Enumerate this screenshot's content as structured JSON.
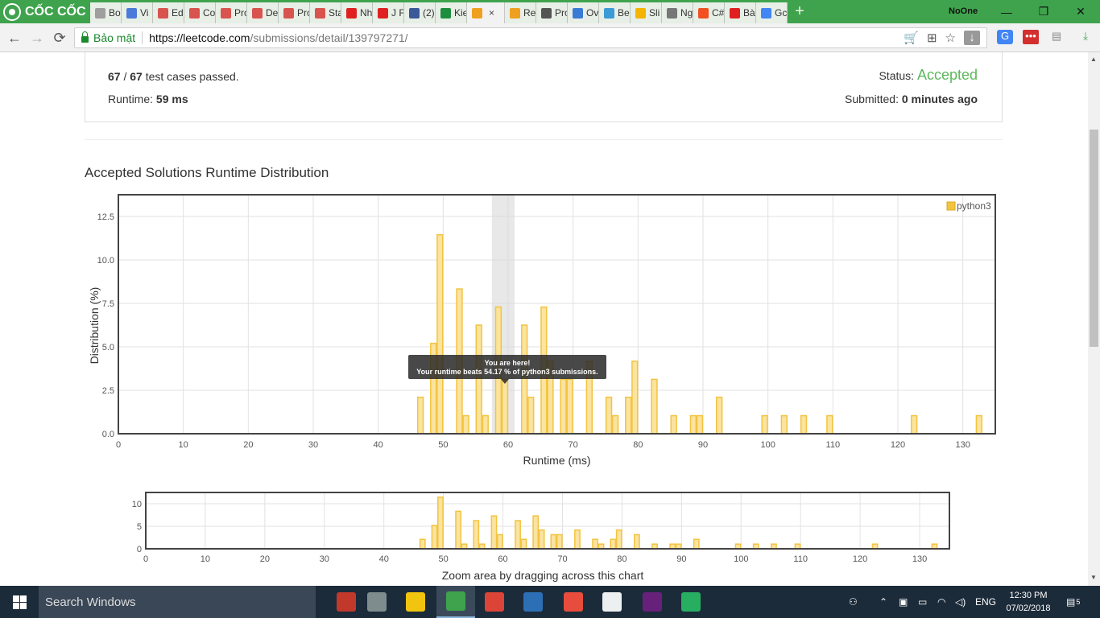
{
  "browser": {
    "brand": "CỐC CỐC",
    "tabs": [
      {
        "label": "Bo",
        "color": "#9e9e9e"
      },
      {
        "label": "Vi",
        "color": "#4a7bd9"
      },
      {
        "label": "Ed",
        "color": "#d9534f"
      },
      {
        "label": "Co",
        "color": "#d9534f"
      },
      {
        "label": "Pro",
        "color": "#d9534f"
      },
      {
        "label": "De",
        "color": "#d9534f"
      },
      {
        "label": "Pro",
        "color": "#d9534f"
      },
      {
        "label": "Sta",
        "color": "#d9534f"
      },
      {
        "label": "Nh",
        "color": "#e02020"
      },
      {
        "label": "J F",
        "color": "#e02020"
      },
      {
        "label": "(2)",
        "color": "#3b5998"
      },
      {
        "label": "Kie",
        "color": "#1e8e3e"
      },
      {
        "label": "",
        "color": "#f0a020",
        "active": true,
        "close": "×"
      },
      {
        "label": "Re",
        "color": "#f0a020"
      },
      {
        "label": "Pro",
        "color": "#555555"
      },
      {
        "label": "Ov",
        "color": "#3a7bd5"
      },
      {
        "label": "Be",
        "color": "#3a9bd5"
      },
      {
        "label": "Sli",
        "color": "#f4b400"
      },
      {
        "label": "Ng",
        "color": "#777777"
      },
      {
        "label": "C#",
        "color": "#f25022"
      },
      {
        "label": "Bà",
        "color": "#e02020"
      },
      {
        "label": "Gc",
        "color": "#4285f4"
      }
    ],
    "new_tab": "+",
    "profile": "NoOne",
    "window": {
      "minimize": "—",
      "maximize": "❐",
      "close": "✕"
    },
    "nav": {
      "back": "←",
      "forward": "→",
      "reload": "⟳"
    },
    "secure_label": "Bảo mật",
    "url_scheme_host": "https://leetcode.com",
    "url_path": "/submissions/detail/139797271/"
  },
  "submission": {
    "passed": "67",
    "slash": " / ",
    "total": "67",
    "passed_suffix": " test cases passed.",
    "runtime_label": "Runtime: ",
    "runtime_value": "59 ms",
    "status_label": "Status: ",
    "status_value": "Accepted",
    "submitted_label": "Submitted: ",
    "submitted_value": "0 minutes ago"
  },
  "section_title": "Accepted Solutions Runtime Distribution",
  "chart_data": [
    {
      "type": "bar",
      "xlabel": "Runtime (ms)",
      "ylabel": "Distribution (%)",
      "xlim": [
        0,
        135
      ],
      "ylim": [
        0,
        13.75
      ],
      "xticks": [
        0,
        10,
        20,
        30,
        40,
        50,
        60,
        70,
        80,
        90,
        100,
        110,
        120,
        130
      ],
      "yticks": [
        "0.0",
        "2.5",
        "5.0",
        "7.5",
        "10.0",
        "12.5"
      ],
      "grid": true,
      "legend": "top-right",
      "series": [
        {
          "name": "python3",
          "color": "#f2c440"
        }
      ],
      "x": [
        46.5,
        48.5,
        49.5,
        52.5,
        53.5,
        55.5,
        56.5,
        58.5,
        59.5,
        62.5,
        63.5,
        65.5,
        66.5,
        68.5,
        69.5,
        72.5,
        75.5,
        76.5,
        78.5,
        79.5,
        82.5,
        85.5,
        88.5,
        89.5,
        92.5,
        99.5,
        102.5,
        105.5,
        109.5,
        122.5,
        132.5
      ],
      "values": [
        2.1,
        5.2,
        11.45,
        8.33,
        1.04,
        6.25,
        1.04,
        7.29,
        3.13,
        6.25,
        2.1,
        7.29,
        4.17,
        3.13,
        3.13,
        4.17,
        2.1,
        1.04,
        2.1,
        4.17,
        3.13,
        1.04,
        1.04,
        1.04,
        2.1,
        1.04,
        1.04,
        1.04,
        1.04,
        1.04,
        1.04
      ],
      "highlight": {
        "x_from": 57.5,
        "x_to": 61
      },
      "tooltip": {
        "line1": "You are here!",
        "line2": "Your runtime beats 54.17 % of python3 submissions.",
        "x": 59.5
      }
    },
    {
      "type": "bar",
      "xlabel": "Zoom area by dragging across this chart",
      "xlim": [
        0,
        135
      ],
      "ylim": [
        0,
        12.5
      ],
      "xticks": [
        0,
        10,
        20,
        30,
        40,
        50,
        60,
        70,
        80,
        90,
        100,
        110,
        120,
        130
      ],
      "yticks": [
        "0",
        "5",
        "10"
      ],
      "grid": true
    }
  ],
  "taskbar": {
    "search_text": "Search Windows",
    "apps": [
      {
        "name": "paint-app-icon",
        "color": "#c0392b"
      },
      {
        "name": "paint3d-app-icon",
        "color": "#7f8c8d"
      },
      {
        "name": "file-explorer-icon",
        "color": "#f1c40f"
      },
      {
        "name": "coccoc-app-icon",
        "color": "#3fa34d",
        "active": true
      },
      {
        "name": "chrome-app-icon",
        "color": "#db4437"
      },
      {
        "name": "devcpp-app-icon",
        "color": "#2c6fb5"
      },
      {
        "name": "winforms-app-icon",
        "color": "#e74c3c"
      },
      {
        "name": "calculator-app-icon",
        "color": "#ecf0f1"
      },
      {
        "name": "visual-studio-icon",
        "color": "#68217a"
      },
      {
        "name": "chart-app-icon",
        "color": "#27ae60"
      }
    ],
    "lang": "ENG",
    "time": "12:30 PM",
    "date": "07/02/2018",
    "notification_count": "5"
  }
}
